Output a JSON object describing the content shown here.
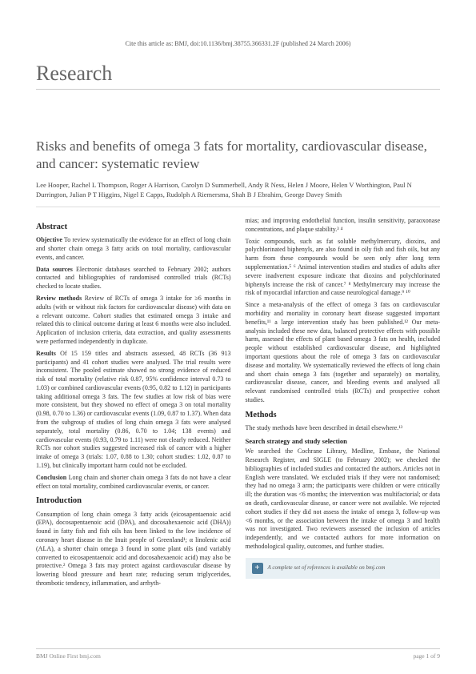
{
  "cite": "Cite this article as: BMJ, doi:10.1136/bmj.38755.366331.2F (published 24 March 2006)",
  "research": "Research",
  "title": "Risks and benefits of omega 3 fats for mortality, cardiovascular disease, and cancer: systematic review",
  "authors": "Lee Hooper, Rachel L Thompson, Roger A Harrison, Carolyn D Summerbell, Andy R Ness, Helen J Moore, Helen V Worthington, Paul N Durrington, Julian P T Higgins, Nigel E Capps, Rudolph A Riemersma, Shah B J Ebrahim, George Davey Smith",
  "abstract_heading": "Abstract",
  "objective_label": "Objective",
  "objective_text": " To review systematically the evidence for an effect of long chain and shorter chain omega 3 fatty acids on total mortality, cardiovascular events, and cancer.",
  "datasources_label": "Data sources",
  "datasources_text": " Electronic databases searched to February 2002; authors contacted and bibliographies of randomised controlled trials (RCTs) checked to locate studies.",
  "reviewmethods_label": "Review methods",
  "reviewmethods_text": " Review of RCTs of omega 3 intake for ≥6 months in adults (with or without risk factors for cardiovascular disease) with data on a relevant outcome. Cohort studies that estimated omega 3 intake and related this to clinical outcome during at least 6 months were also included. Application of inclusion criteria, data extraction, and quality assessments were performed independently in duplicate.",
  "results_label": "Results",
  "results_text": " Of 15 159 titles and abstracts assessed, 48 RCTs (36 913 participants) and 41 cohort studies were analysed. The trial results were inconsistent. The pooled estimate showed no strong evidence of reduced risk of total mortality (relative risk 0.87, 95% confidence interval 0.73 to 1.03) or combined cardiovascular events (0.95, 0.82 to 1.12) in participants taking additional omega 3 fats. The few studies at low risk of bias were more consistent, but they showed no effect of omega 3 on total mortality (0.98, 0.70 to 1.36) or cardiovascular events (1.09, 0.87 to 1.37). When data from the subgroup of studies of long chain omega 3 fats were analysed separately, total mortality (0.86, 0.70 to 1.04; 138 events) and cardiovascular events (0.93, 0.79 to 1.11) were not clearly reduced. Neither RCTs nor cohort studies suggested increased risk of cancer with a higher intake of omega 3 (trials: 1.07, 0.88 to 1.30; cohort studies: 1.02, 0.87 to 1.19), but clinically important harm could not be excluded.",
  "conclusion_label": "Conclusion",
  "conclusion_text": " Long chain and shorter chain omega 3 fats do not have a clear effect on total mortality, combined cardiovascular events, or cancer.",
  "intro_heading": "Introduction",
  "intro_p1": "Consumption of long chain omega 3 fatty acids (eicosapentaenoic acid (EPA), docosapentaenoic acid (DPA), and docosahexaenoic acid (DHA)) found in fatty fish and fish oils has been linked to the low incidence of coronary heart disease in the Inuit people of Greenland¹; α linolenic acid (ALA), a shorter chain omega 3 found in some plant oils (and variably converted to eicosapentaenoic acid and docosahexaenoic acid) may also be protective.² Omega 3 fats may protect against cardiovascular disease by lowering blood pressure and heart rate; reducing serum triglycerides, thrombotic tendency, inflammation, and arrhyth-",
  "intro_p2": "mias; and improving endothelial function, insulin sensitivity, paraoxonase concentrations, and plaque stability.³ ⁴",
  "intro_p3": "Toxic compounds, such as fat soluble methylmercury, dioxins, and polychlorinated biphenyls, are also found in oily fish and fish oils, but any harm from these compounds would be seen only after long term supplementation.⁵ ⁶ Animal intervention studies and studies of adults after severe inadvertent exposure indicate that dioxins and polychlorinated biphenyls increase the risk of cancer.⁷ ⁸ Methylmercury may increase the risk of myocardial infarction and cause neurological damage.⁹ ¹⁰",
  "intro_p4": "Since a meta-analysis of the effect of omega 3 fats on cardiovascular morbidity and mortality in coronary heart disease suggested important benefits,¹¹ a large intervention study has been published.¹² Our meta-analysis included these new data, balanced protective effects with possible harm, assessed the effects of plant based omega 3 fats on health, included people without established cardiovascular disease, and highlighted important questions about the role of omega 3 fats on cardiovascular disease and mortality. We systematically reviewed the effects of long chain and short chain omega 3 fats (together and separately) on mortality, cardiovascular disease, cancer, and bleeding events and analysed all relevant randomised controlled trials (RCTs) and prospective cohort studies.",
  "methods_heading": "Methods",
  "methods_p1": "The study methods have been described in detail elsewhere.¹³",
  "search_heading": "Search strategy and study selection",
  "search_p1": "We searched the Cochrane Library, Medline, Embase, the National Research Register, and SIGLE (to February 2002); we checked the bibliographies of included studies and contacted the authors. Articles not in English were translated. We excluded trials if they were not randomised; they had no omega 3 arm; the participants were children or were critically ill; the duration was <6 months; the intervention was multifactorial; or data on death, cardiovascular disease, or cancer were not available. We rejected cohort studies if they did not assess the intake of omega 3, follow-up was <6 months, or the association between the intake of omega 3 and health was not investigated. Two reviewers assessed the inclusion of articles independently, and we contacted authors for more information on methodological quality, outcomes, and further studies.",
  "refbox_text": "A complete set of references is available on bmj.com",
  "footer_left": "BMJ Online First bmj.com",
  "footer_right": "page 1 of 9"
}
